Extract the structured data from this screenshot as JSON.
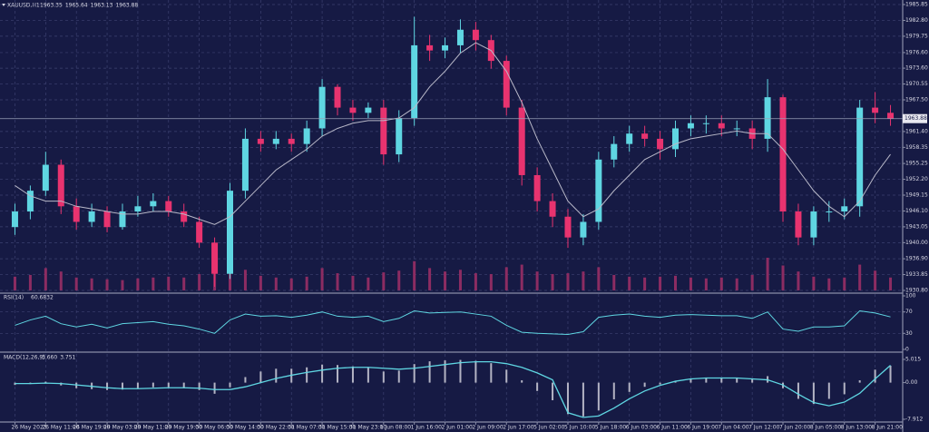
{
  "chart_data": [
    {
      "type": "candlestick",
      "title": "XAUUSD,H1",
      "title_values": [
        1963.35,
        1965.64,
        1963.13,
        1963.88
      ],
      "colors": {
        "up": "#5fd6e2",
        "down": "#e8336f"
      },
      "grid": true,
      "open": [
        1943,
        1946,
        1950,
        1955,
        1947,
        1944,
        1946,
        1943,
        1946,
        1947,
        1948,
        1946,
        1944,
        1940,
        1934,
        1950,
        1960,
        1959,
        1960,
        1959,
        1962,
        1970,
        1966,
        1965,
        1966,
        1957,
        1964,
        1978,
        1977,
        1978,
        1981,
        1979,
        1975,
        1966,
        1953,
        1948,
        1945,
        1941,
        1944,
        1956,
        1959,
        1961,
        1960,
        1958,
        1962,
        1963,
        1963,
        1962,
        1962,
        1960,
        1968,
        1946,
        1941,
        1946,
        1946,
        1947,
        1966,
        1965
      ],
      "high": [
        1947.5,
        1951,
        1957.5,
        1956,
        1948.5,
        1947.5,
        1947,
        1947.5,
        1949,
        1949.5,
        1949,
        1947.5,
        1945,
        1941,
        1951.5,
        1962,
        1961.5,
        1961.5,
        1961,
        1963.5,
        1971.5,
        1970.5,
        1967.5,
        1967,
        1967.5,
        1965.5,
        1983.5,
        1980,
        1979.5,
        1983,
        1982.5,
        1980,
        1976,
        1967.5,
        1954.5,
        1949.5,
        1946.5,
        1945.5,
        1957.5,
        1960.5,
        1962.5,
        1962.5,
        1961.5,
        1963.5,
        1964.5,
        1964.5,
        1964.5,
        1963.5,
        1963.5,
        1971.5,
        1968.5,
        1947.5,
        1947,
        1948,
        1948.5,
        1967.5,
        1969,
        1966.5
      ],
      "low": [
        1941.5,
        1944.5,
        1949,
        1945.5,
        1942.5,
        1943,
        1942,
        1942.5,
        1945,
        1946,
        1945,
        1943,
        1939,
        1931.5,
        1933,
        1948.5,
        1957.5,
        1958,
        1957.5,
        1957.5,
        1960.5,
        1964.5,
        1963.5,
        1964,
        1955,
        1955.5,
        1962.5,
        1975,
        1975.5,
        1976.5,
        1977,
        1973.5,
        1964.5,
        1951,
        1946,
        1943,
        1939,
        1939.5,
        1942.5,
        1954.5,
        1957.5,
        1958.5,
        1956,
        1956.5,
        1960.5,
        1961,
        1960.5,
        1960.5,
        1958,
        1957.5,
        1944,
        1939.5,
        1939.5,
        1944,
        1944.5,
        1945,
        1963,
        1962.5
      ],
      "close": [
        1946,
        1950,
        1955,
        1947,
        1944,
        1946,
        1943,
        1946,
        1947,
        1948,
        1946,
        1944,
        1940,
        1934,
        1950,
        1960,
        1959,
        1960,
        1959,
        1962,
        1970,
        1966,
        1965,
        1966,
        1957,
        1964,
        1978,
        1977,
        1978,
        1981,
        1979,
        1975,
        1966,
        1953,
        1948,
        1945,
        1941,
        1944,
        1956,
        1959,
        1961,
        1960,
        1958,
        1962,
        1963,
        1963,
        1962,
        1962,
        1960,
        1968,
        1946,
        1941,
        1946,
        1946,
        1947,
        1966,
        1965,
        1963.88
      ],
      "ma": {
        "color": "#b8b8c8",
        "values": [
          1951,
          1949,
          1948,
          1948,
          1947,
          1946.5,
          1946,
          1945.5,
          1945.5,
          1946,
          1946,
          1945.5,
          1944.5,
          1943.5,
          1945,
          1948,
          1951,
          1954,
          1956,
          1958,
          1960.5,
          1962,
          1963,
          1963.5,
          1963.5,
          1964,
          1966,
          1970,
          1973,
          1976.5,
          1978.5,
          1977,
          1973,
          1967,
          1960,
          1954,
          1948,
          1945,
          1946.5,
          1950,
          1953,
          1956,
          1957.5,
          1959,
          1960,
          1960.5,
          1961,
          1961.5,
          1961,
          1961,
          1958,
          1954,
          1950,
          1947,
          1945,
          1948,
          1953,
          1957
        ]
      },
      "volume": {
        "color": "#8c2c62",
        "values": [
          1600,
          1800,
          2600,
          2200,
          1500,
          1400,
          1300,
          1200,
          1400,
          1500,
          1600,
          1500,
          1900,
          3500,
          2800,
          2400,
          1700,
          1500,
          1400,
          1600,
          2600,
          2000,
          1700,
          1500,
          2100,
          2300,
          3400,
          2600,
          2200,
          2400,
          2000,
          1900,
          2700,
          3000,
          2200,
          1900,
          2000,
          2200,
          2700,
          1800,
          1600,
          1500,
          1600,
          1700,
          1500,
          1400,
          1500,
          1400,
          1800,
          3800,
          2900,
          2200,
          1600,
          1400,
          1500,
          3000,
          2300,
          1500
        ]
      },
      "ylim": [
        1930.8,
        1985.85
      ],
      "yticks": [
        1985.85,
        {
          "value": 1982.8,
          "label": "1982.80"
        },
        1979.75,
        {
          "value": 1976.6,
          "label": "1976.60"
        },
        {
          "value": 1973.6,
          "label": "1973.60"
        },
        1970.55,
        {
          "value": 1967.5,
          "label": "1967.50"
        },
        {
          "value": 1961.4,
          "label": "1961.40"
        },
        1958.35,
        1955.25,
        {
          "value": 1952.2,
          "label": "1952.20"
        },
        1949.15,
        {
          "value": 1946.1,
          "label": "1946.10"
        },
        1943.05,
        {
          "value": 1940,
          "label": "1940.00"
        },
        {
          "value": 1936.9,
          "label": "1936.90"
        },
        1933.85,
        {
          "value": 1930.8,
          "label": "1930.80"
        }
      ]
    },
    {
      "type": "line",
      "title": "RSI(14)",
      "title_values": [
        60.6832
      ],
      "series": [
        {
          "color": "#5fd6e2",
          "values": [
            45,
            55,
            62,
            48,
            42,
            47,
            40,
            48,
            50,
            52,
            47,
            44,
            38,
            30,
            55,
            66,
            62,
            63,
            60,
            64,
            70,
            62,
            60,
            62,
            52,
            58,
            72,
            68,
            69,
            70,
            66,
            62,
            45,
            32,
            30,
            29,
            28,
            33,
            60,
            64,
            66,
            62,
            60,
            64,
            65,
            64,
            63,
            63,
            58,
            70,
            38,
            34,
            42,
            42,
            44,
            72,
            68,
            60.6832
          ]
        }
      ],
      "ylim": [
        0,
        100
      ],
      "yticks": [
        100,
        70,
        30,
        0
      ]
    },
    {
      "type": "macd",
      "title": "MACD(12,26,9)",
      "title_values": [
        {
          "value": 3.66,
          "label": "3.660"
        },
        3.751
      ],
      "categories": [
        "26 May 2023",
        null,
        "26 May 11:00",
        null,
        "26 May 19:00",
        null,
        "29 May 03:00",
        null,
        "29 May 11:00",
        null,
        "29 May 19:00",
        null,
        "30 May 06:00",
        null,
        "30 May 14:00",
        null,
        "30 May 22:00",
        null,
        "31 May 07:00",
        null,
        "31 May 15:00",
        null,
        "31 May 23:00",
        null,
        "1 Jun 08:00",
        null,
        "1 Jun 16:00",
        null,
        "2 Jun 01:00",
        null,
        "2 Jun 09:00",
        null,
        "2 Jun 17:00",
        null,
        "5 Jun 02:00",
        null,
        "5 Jun 10:00",
        null,
        "5 Jun 18:00",
        null,
        "6 Jun 03:00",
        null,
        "6 Jun 11:00",
        null,
        "6 Jun 19:00",
        null,
        "7 Jun 04:00",
        null,
        "7 Jun 12:00",
        null,
        "7 Jun 20:00",
        null,
        "8 Jun 05:00",
        null,
        "8 Jun 13:00",
        null,
        "8 Jun 21:00",
        null
      ],
      "histogram": {
        "color": "#b4b4c4",
        "values": [
          -0.5,
          -0.3,
          0.2,
          -0.6,
          -1.2,
          -1.4,
          -1.6,
          -1.5,
          -1.2,
          -1,
          -1,
          -1.2,
          -1.6,
          -2.4,
          -1,
          1.2,
          2.4,
          3,
          3,
          3.3,
          3.9,
          3.8,
          3.5,
          3.3,
          2.4,
          2.6,
          4,
          4.6,
          4.8,
          4.9,
          4.7,
          4.2,
          2.8,
          0.5,
          -1.8,
          -3.8,
          -6.8,
          -7.3,
          -6,
          -3.6,
          -2,
          -0.9,
          -0.4,
          0.3,
          0.8,
          1,
          1,
          1,
          0.7,
          1.4,
          -1.2,
          -3.5,
          -4.6,
          -3.5,
          -2.5,
          0.5,
          2.8,
          3.66
        ]
      },
      "signal": {
        "color": "#5fd6e2",
        "values": [
          -0.2,
          -0.2,
          -0.1,
          -0.2,
          -0.5,
          -0.8,
          -1.1,
          -1.3,
          -1.3,
          -1.2,
          -1.1,
          -1.1,
          -1.2,
          -1.5,
          -1.5,
          -0.9,
          0,
          0.9,
          1.6,
          2.2,
          2.7,
          3.1,
          3.3,
          3.3,
          3.1,
          2.9,
          3.1,
          3.5,
          3.9,
          4.3,
          4.5,
          4.5,
          4.1,
          3.3,
          2.1,
          0.6,
          -6.5,
          -7.5,
          -7.2,
          -5.5,
          -3.5,
          -1.8,
          -0.6,
          0.3,
          0.8,
          1,
          1,
          1,
          0.8,
          0.6,
          -0.5,
          -2.5,
          -4.3,
          -5,
          -4.2,
          -2.3,
          0.8,
          3.751
        ]
      },
      "ylim": [
        -7.912,
        5.015
      ],
      "yticks": [
        5.015,
        {
          "value": 0,
          "label": "0.00"
        },
        -7.912
      ]
    }
  ]
}
